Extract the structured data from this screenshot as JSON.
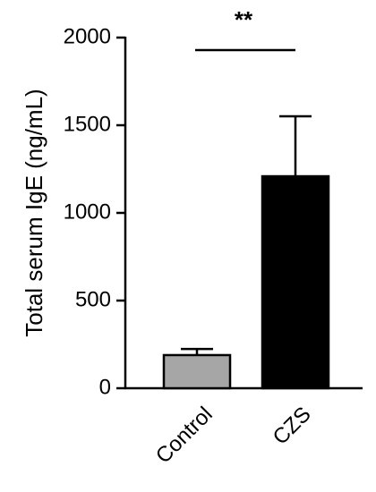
{
  "chart_data": {
    "type": "bar",
    "y_label": "Total serum IgE (ng/mL)",
    "categories": [
      "Control",
      "CZS"
    ],
    "values": [
      189,
      1209
    ],
    "errors": [
      35,
      342
    ],
    "colors": [
      "#a6a6a6",
      "#000000"
    ],
    "ylim": [
      0,
      2000
    ],
    "yticks": [
      0,
      500,
      1000,
      1500,
      2000
    ],
    "annotation": "**"
  }
}
